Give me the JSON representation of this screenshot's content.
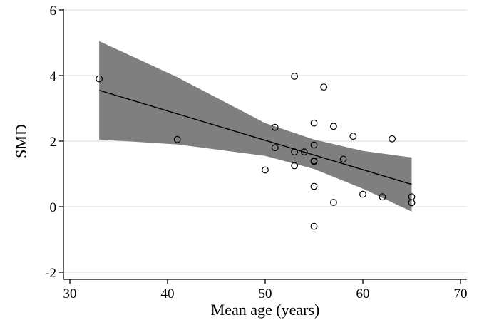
{
  "chart_data": {
    "type": "scatter",
    "title": "",
    "xlabel": "Mean age (years)",
    "ylabel": "SMD",
    "xlim": [
      30,
      70
    ],
    "ylim": [
      -2,
      6
    ],
    "xticks": [
      30,
      40,
      50,
      60,
      70
    ],
    "yticks": [
      -2,
      0,
      2,
      4,
      6
    ],
    "grid": true,
    "points": [
      {
        "x": 33,
        "y": 3.9
      },
      {
        "x": 41,
        "y": 2.05
      },
      {
        "x": 50,
        "y": 1.12
      },
      {
        "x": 51,
        "y": 2.42
      },
      {
        "x": 51,
        "y": 1.8
      },
      {
        "x": 53,
        "y": 3.98
      },
      {
        "x": 53,
        "y": 1.67
      },
      {
        "x": 53,
        "y": 1.25
      },
      {
        "x": 54,
        "y": 1.67
      },
      {
        "x": 55,
        "y": 2.55
      },
      {
        "x": 55,
        "y": 1.88
      },
      {
        "x": 55,
        "y": 1.4
      },
      {
        "x": 55,
        "y": 1.38
      },
      {
        "x": 55,
        "y": 0.62
      },
      {
        "x": 55,
        "y": -0.6
      },
      {
        "x": 56,
        "y": 3.65
      },
      {
        "x": 57,
        "y": 2.45
      },
      {
        "x": 57,
        "y": 0.13
      },
      {
        "x": 58,
        "y": 1.45
      },
      {
        "x": 59,
        "y": 2.15
      },
      {
        "x": 60,
        "y": 0.38
      },
      {
        "x": 62,
        "y": 0.3
      },
      {
        "x": 63,
        "y": 2.07
      },
      {
        "x": 65,
        "y": 0.3
      },
      {
        "x": 65,
        "y": 0.12
      }
    ],
    "fit_line": {
      "x": [
        33,
        65
      ],
      "y": [
        3.55,
        0.68
      ]
    },
    "ci_band": {
      "x": [
        33,
        41,
        50,
        55,
        60,
        65
      ],
      "lower": [
        2.05,
        1.9,
        1.55,
        1.15,
        0.55,
        -0.15
      ],
      "upper": [
        5.05,
        3.95,
        2.55,
        2.05,
        1.7,
        1.5
      ]
    },
    "colors": {
      "band": "#7f7f7f",
      "grid": "#d9d9d9",
      "line": "#000000",
      "marker": "#000000"
    }
  }
}
